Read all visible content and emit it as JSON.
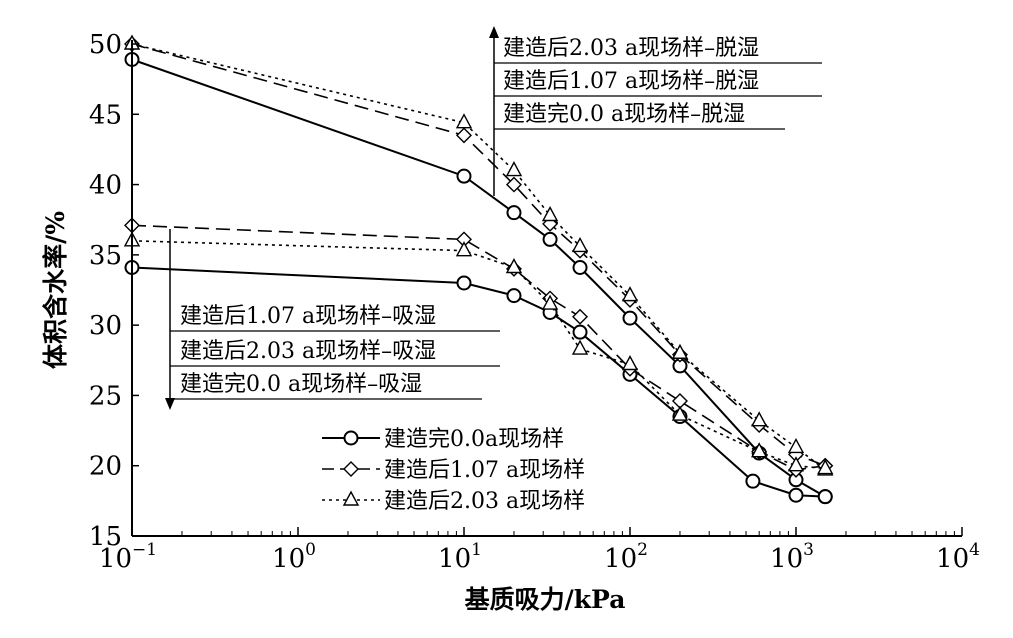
{
  "chart_data": {
    "type": "line",
    "xscale": "log",
    "xlim": [
      0.1,
      10000
    ],
    "ylim": [
      15,
      50
    ],
    "xlabel": "基质吸力/kPa",
    "ylabel": "体积含水率/%",
    "x_ticks": [
      {
        "base": "10",
        "exp": "−1"
      },
      {
        "base": "10",
        "exp": "0"
      },
      {
        "base": "10",
        "exp": "1"
      },
      {
        "base": "10",
        "exp": "2"
      },
      {
        "base": "10",
        "exp": "3"
      },
      {
        "base": "10",
        "exp": "4"
      }
    ],
    "y_ticks": [
      "15",
      "20",
      "25",
      "30",
      "35",
      "40",
      "45",
      "50"
    ],
    "legend": [
      {
        "label": "建造完0.0a现场样",
        "marker": "circle",
        "dash": "solid"
      },
      {
        "label": "建造后1.07 a现场样",
        "marker": "diamond",
        "dash": "dashed"
      },
      {
        "label": "建造后2.03 a现场样",
        "marker": "triangle",
        "dash": "dotted"
      }
    ],
    "annotations": {
      "drying": [
        "建造后2.03 a现场样–脱湿",
        "建造后1.07 a现场样–脱湿",
        "建造完0.0 a现场样–脱湿"
      ],
      "wetting": [
        "建造后1.07 a现场样–吸湿",
        "建造后2.03 a现场样–吸湿",
        "建造完0.0 a现场样–吸湿"
      ]
    },
    "series": [
      {
        "key": "s0_dry",
        "marker": "circle",
        "dash": "solid",
        "x": [
          0.1,
          10,
          20,
          33,
          50,
          100,
          200,
          600,
          1000,
          1500
        ],
        "y": [
          48.9,
          40.6,
          38.0,
          36.1,
          34.1,
          30.5,
          27.1,
          20.9,
          19.0,
          17.8
        ]
      },
      {
        "key": "s0_wet",
        "marker": "circle",
        "dash": "solid",
        "x": [
          0.1,
          10,
          20,
          33,
          50,
          100,
          200,
          550,
          1000,
          1500
        ],
        "y": [
          34.1,
          33.0,
          32.1,
          30.9,
          29.5,
          26.5,
          23.5,
          18.9,
          17.9,
          17.8
        ]
      },
      {
        "key": "s1_dry",
        "marker": "diamond",
        "dash": "dashed",
        "x": [
          0.1,
          10,
          20,
          33,
          50,
          100,
          200,
          600,
          1000,
          1500
        ],
        "y": [
          50.0,
          43.5,
          40.0,
          37.2,
          35.3,
          31.8,
          27.9,
          22.9,
          20.8,
          20.0
        ]
      },
      {
        "key": "s1_wet",
        "marker": "diamond",
        "dash": "dashed",
        "x": [
          0.1,
          10,
          20,
          33,
          50,
          100,
          200,
          600,
          1000,
          1500
        ],
        "y": [
          37.1,
          36.1,
          34.0,
          31.9,
          30.6,
          26.9,
          24.6,
          21.0,
          19.7,
          20.0
        ]
      },
      {
        "key": "s2_dry",
        "marker": "triangle",
        "dash": "dotted",
        "x": [
          0.1,
          10,
          20,
          33,
          50,
          100,
          200,
          600,
          1000,
          1500
        ],
        "y": [
          50.0,
          44.4,
          41.0,
          37.8,
          35.6,
          32.1,
          28.0,
          23.2,
          21.3,
          19.7
        ]
      },
      {
        "key": "s2_wet",
        "marker": "triangle",
        "dash": "dotted",
        "x": [
          0.1,
          10,
          20,
          33,
          50,
          100,
          200,
          600,
          1000,
          1500
        ],
        "y": [
          36.0,
          35.3,
          34.1,
          31.5,
          28.3,
          27.2,
          23.6,
          21.0,
          20.0,
          19.8
        ]
      }
    ]
  }
}
